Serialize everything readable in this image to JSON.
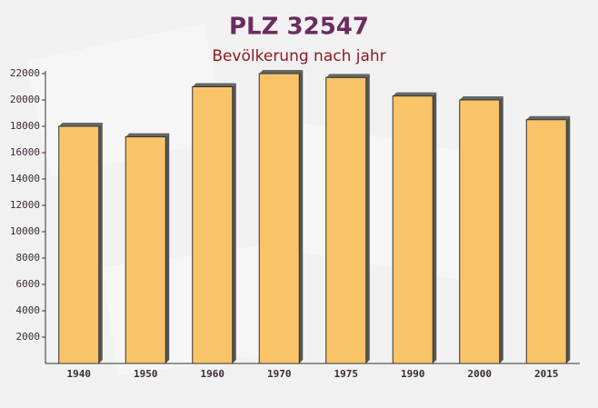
{
  "chart_data": {
    "type": "bar",
    "title": "PLZ 32547",
    "subtitle": "Bevölkerung nach jahr",
    "categories": [
      "1940",
      "1950",
      "1960",
      "1970",
      "1975",
      "1990",
      "2000",
      "2015"
    ],
    "values": [
      18000,
      17200,
      21000,
      22000,
      21700,
      20300,
      20000,
      18500
    ],
    "color": "#f9c468",
    "ylim": [
      0,
      22000
    ],
    "yticks": [
      2000,
      4000,
      6000,
      8000,
      10000,
      12000,
      14000,
      16000,
      18000,
      20000,
      22000
    ]
  }
}
